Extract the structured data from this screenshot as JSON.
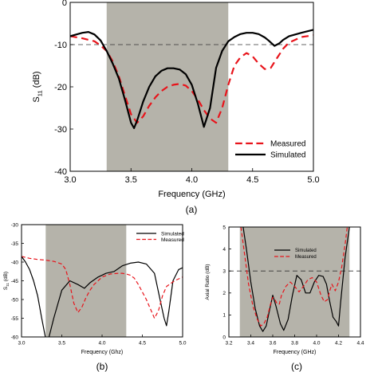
{
  "chart_data": [
    {
      "type": "line",
      "panel_caption": "(a)",
      "xlabel": "Frequency (GHz)",
      "ylabel": "S",
      "ylabel_sub": "11",
      "ylabel_unit": "(dB)",
      "xlim": [
        3.0,
        5.0
      ],
      "ylim": [
        -40,
        0
      ],
      "xticks": [
        "3.0",
        "3.5",
        "4.0",
        "4.5",
        "5.0"
      ],
      "xtick_values": [
        3.0,
        3.5,
        4.0,
        4.5,
        5.0
      ],
      "yticks": [
        "0",
        "-10",
        "-20",
        "-30",
        "-40"
      ],
      "ytick_values": [
        0,
        -10,
        -20,
        -30,
        -40
      ],
      "shaded_band": [
        3.3,
        4.3
      ],
      "reference_line": -10,
      "legend_position": "bottom-right",
      "series": [
        {
          "name": "Measured",
          "style": "dashed",
          "color": "#e8141b",
          "x": [
            3.0,
            3.1,
            3.2,
            3.25,
            3.3,
            3.35,
            3.4,
            3.45,
            3.5,
            3.55,
            3.6,
            3.65,
            3.7,
            3.75,
            3.8,
            3.85,
            3.9,
            3.95,
            4.0,
            4.05,
            4.1,
            4.15,
            4.2,
            4.25,
            4.3,
            4.35,
            4.4,
            4.45,
            4.5,
            4.55,
            4.6,
            4.65,
            4.7,
            4.75,
            4.8,
            4.9,
            5.0
          ],
          "y": [
            -8,
            -8.5,
            -9.2,
            -10.2,
            -11.5,
            -14,
            -17.5,
            -22,
            -26.5,
            -28.5,
            -27,
            -24.5,
            -22.5,
            -21,
            -20,
            -19.5,
            -19.3,
            -19.7,
            -21,
            -23,
            -25.5,
            -27.5,
            -28.5,
            -25,
            -19.5,
            -15,
            -13,
            -12,
            -12.8,
            -14.5,
            -15.8,
            -15.5,
            -13.2,
            -11,
            -9.5,
            -8.2,
            -7.8
          ]
        },
        {
          "name": "Simulated",
          "style": "solid",
          "color": "#000000",
          "x": [
            3.0,
            3.1,
            3.15,
            3.2,
            3.25,
            3.3,
            3.35,
            3.4,
            3.45,
            3.5,
            3.525,
            3.55,
            3.6,
            3.65,
            3.7,
            3.75,
            3.8,
            3.85,
            3.9,
            3.95,
            4.0,
            4.05,
            4.1,
            4.15,
            4.2,
            4.25,
            4.3,
            4.35,
            4.4,
            4.45,
            4.5,
            4.55,
            4.6,
            4.63,
            4.68,
            4.72,
            4.75,
            4.8,
            4.9,
            5.0
          ],
          "y": [
            -8,
            -7.2,
            -7,
            -7.6,
            -9,
            -11.5,
            -14.5,
            -18,
            -23,
            -28.5,
            -29.8,
            -28,
            -23.5,
            -20,
            -17.5,
            -16.2,
            -15.6,
            -15.6,
            -15.9,
            -17,
            -19.5,
            -24,
            -29.5,
            -25,
            -15.5,
            -11.5,
            -9.2,
            -8.2,
            -7.5,
            -7.2,
            -7.2,
            -7.5,
            -8.3,
            -9,
            -10.3,
            -9.7,
            -8.9,
            -8,
            -7.2,
            -6.5
          ]
        }
      ]
    },
    {
      "type": "line",
      "panel_caption": "(b)",
      "xlabel": "Frequency (Ghz)",
      "ylabel": "S",
      "ylabel_sub": "11",
      "ylabel_unit": "(dB)",
      "xlim": [
        3.0,
        5.0
      ],
      "ylim": [
        -60,
        -30
      ],
      "xticks": [
        "3.0",
        "3.5",
        "4.0",
        "4.5",
        "5.0"
      ],
      "xtick_values": [
        3.0,
        3.5,
        4.0,
        4.5,
        5.0
      ],
      "yticks": [
        "-30",
        "-35",
        "-40",
        "-45",
        "-50",
        "-55",
        "-60"
      ],
      "ytick_values": [
        -30,
        -35,
        -40,
        -45,
        -50,
        -55,
        -60
      ],
      "shaded_band": [
        3.3,
        4.3
      ],
      "legend_position": "top-right",
      "series": [
        {
          "name": "Simulated",
          "style": "solid",
          "color": "#000000",
          "x": [
            3.0,
            3.05,
            3.1,
            3.15,
            3.2,
            3.25,
            3.3,
            3.33,
            3.4,
            3.5,
            3.6,
            3.7,
            3.78,
            3.85,
            3.95,
            4.05,
            4.15,
            4.25,
            4.35,
            4.45,
            4.55,
            4.65,
            4.72,
            4.77,
            4.8,
            4.83,
            4.88,
            4.95,
            5.0
          ],
          "y": [
            -38.5,
            -40,
            -42,
            -45,
            -49,
            -55,
            -60.5,
            -61,
            -55,
            -47.5,
            -45,
            -46,
            -47,
            -45.5,
            -44,
            -43,
            -42.5,
            -41,
            -40.3,
            -40,
            -40.5,
            -43,
            -50,
            -55,
            -57,
            -53,
            -45,
            -42,
            -41.5
          ]
        },
        {
          "name": "Measured",
          "style": "dashed",
          "color": "#e8141b",
          "x": [
            3.0,
            3.1,
            3.2,
            3.3,
            3.4,
            3.5,
            3.55,
            3.6,
            3.65,
            3.7,
            3.75,
            3.8,
            3.85,
            3.9,
            4.0,
            4.1,
            4.2,
            4.25,
            4.3,
            4.35,
            4.4,
            4.45,
            4.5,
            4.55,
            4.6,
            4.65,
            4.7,
            4.75,
            4.8,
            4.9,
            5.0
          ],
          "y": [
            -38.5,
            -39,
            -39.3,
            -39.5,
            -39.8,
            -40.5,
            -42,
            -46,
            -51,
            -53.5,
            -52,
            -49.5,
            -47.5,
            -46,
            -44,
            -43.2,
            -43,
            -43,
            -43.2,
            -43.5,
            -44.3,
            -46,
            -48,
            -50,
            -52.5,
            -55,
            -53,
            -49,
            -46.5,
            -45,
            -44
          ]
        }
      ]
    },
    {
      "type": "line",
      "panel_caption": "(c)",
      "xlabel": "Frequency (GHz)",
      "ylabel": "Axial Ratio (dB)",
      "xlim": [
        3.2,
        4.4
      ],
      "ylim": [
        0,
        5
      ],
      "xticks": [
        "3.2",
        "3.4",
        "3.6",
        "3.8",
        "4.0",
        "4.2",
        "4.4"
      ],
      "xtick_values": [
        3.2,
        3.4,
        3.6,
        3.8,
        4.0,
        4.2,
        4.4
      ],
      "yticks": [
        "0",
        "1",
        "2",
        "3",
        "4",
        "5"
      ],
      "ytick_values": [
        0,
        1,
        2,
        3,
        4,
        5
      ],
      "shaded_band": [
        3.3,
        4.3
      ],
      "reference_line": 3,
      "legend_position": "top-center",
      "series": [
        {
          "name": "Simulated",
          "style": "solid",
          "color": "#000000",
          "x": [
            3.33,
            3.36,
            3.4,
            3.44,
            3.48,
            3.51,
            3.54,
            3.57,
            3.6,
            3.63,
            3.67,
            3.7,
            3.74,
            3.78,
            3.82,
            3.86,
            3.9,
            3.94,
            3.98,
            4.02,
            4.06,
            4.09,
            4.12,
            4.15,
            4.18,
            4.2,
            4.22,
            4.26,
            4.3
          ],
          "y": [
            5,
            4,
            2.5,
            1.3,
            0.5,
            0.25,
            0.5,
            1.2,
            1.9,
            1.4,
            0.6,
            0.3,
            0.8,
            1.9,
            2.8,
            2.6,
            2,
            2,
            2.5,
            2.8,
            2.75,
            2.4,
            1.6,
            0.9,
            0.7,
            0.5,
            1.6,
            3.6,
            5
          ]
        },
        {
          "name": "Measured",
          "style": "dashed",
          "color": "#e8141b",
          "x": [
            3.31,
            3.34,
            3.38,
            3.42,
            3.46,
            3.49,
            3.52,
            3.55,
            3.58,
            3.6,
            3.62,
            3.64,
            3.66,
            3.68,
            3.72,
            3.76,
            3.8,
            3.84,
            3.88,
            3.92,
            3.96,
            4.0,
            4.04,
            4.07,
            4.1,
            4.12,
            4.14,
            4.17,
            4.2,
            4.23,
            4.26,
            4.28
          ],
          "y": [
            5,
            3.9,
            2.4,
            1.4,
            0.8,
            0.5,
            0.6,
            0.9,
            1.5,
            1.8,
            1.7,
            1.5,
            1.5,
            1.9,
            2.3,
            2.5,
            2.3,
            2.05,
            2.3,
            2.6,
            2.7,
            2.5,
            1.9,
            1.6,
            1.7,
            2.1,
            2.4,
            2.1,
            2.5,
            3.2,
            4.2,
            5
          ]
        }
      ]
    }
  ]
}
